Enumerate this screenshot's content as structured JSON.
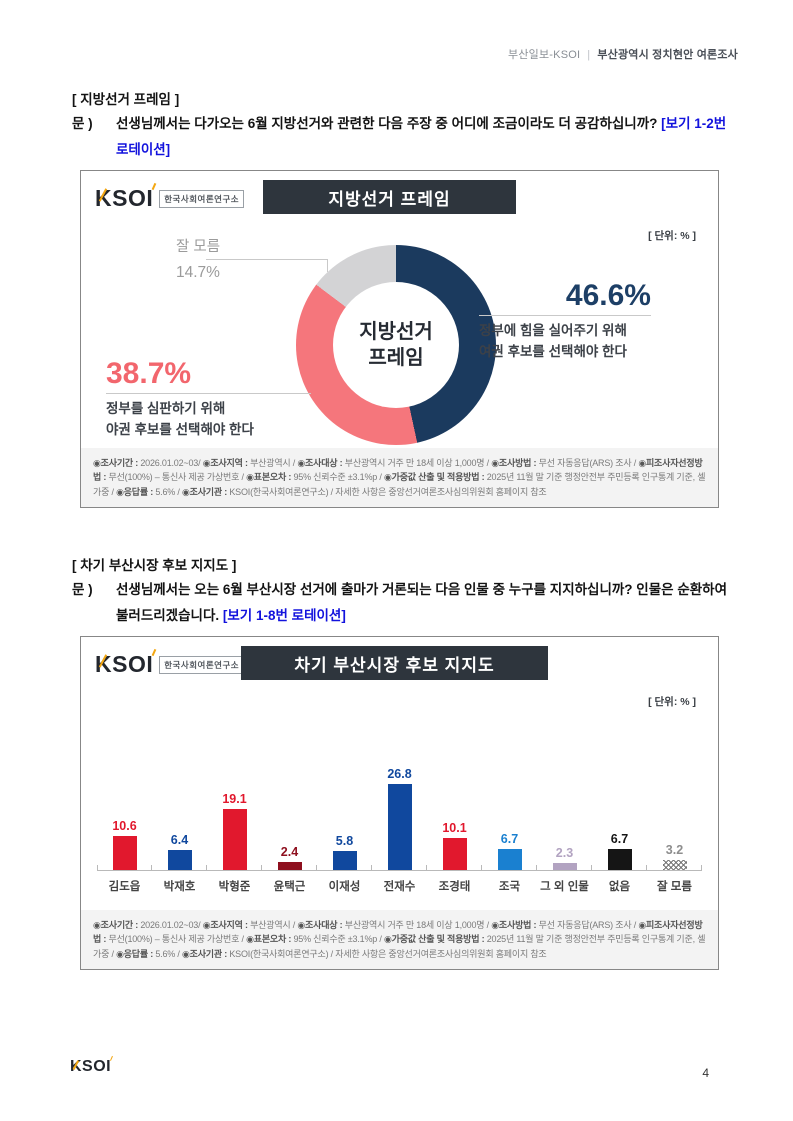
{
  "header": {
    "left": "부산일보-KSOI",
    "divider": "|",
    "right": "부산광역시 정치현안 여론조사"
  },
  "logo": {
    "text": "KSOI",
    "subtitle": "한국사회여론연구소"
  },
  "sections": [
    {
      "heading": "[ 지방선거 프레임 ]",
      "prefix": "문 )",
      "question": "선생님께서는 다가오는 6월 지방선거와 관련한 다음 주장 중 어디에 조금이라도 더 공감하십니까? ",
      "rotation_note": "[보기 1-2번 로테이션]"
    },
    {
      "heading": "[ 차기 부산시장 후보 지지도 ]",
      "prefix": "문 )",
      "question": "선생님께서는 오는 6월 부산시장 선거에 출마가 거론되는 다음 인물 중 누구를 지지하십니까? 인물은 순환하여 불러드리겠습니다. ",
      "rotation_note": "[보기 1-8번 로테이션]"
    }
  ],
  "chart_data": [
    {
      "type": "pie",
      "style": "donut",
      "title": "지방선거 프레임",
      "unit_label": "[ 단위: % ]",
      "center_label_line1": "지방선거",
      "center_label_line2": "프레임",
      "slices": [
        {
          "label": "정부에 힘을 실어주기 위해 여권 후보를 선택해야 한다",
          "value": 46.6,
          "display": "46.6%",
          "color": "#1b3a5e",
          "desc_line1": "정부에 힘을 실어주기 위해",
          "desc_line2": "여권 후보를 선택해야 한다"
        },
        {
          "label": "정부를 심판하기 위해 야권 후보를 선택해야 한다",
          "value": 38.7,
          "display": "38.7%",
          "color": "#f5767c",
          "desc_line1": "정부를 심판하기 위해",
          "desc_line2": "야권 후보를 선택해야 한다"
        },
        {
          "label": "잘 모름",
          "value": 14.7,
          "display": "14.7%",
          "color": "#d3d3d5"
        }
      ]
    },
    {
      "type": "bar",
      "title": "차기 부산시장 후보 지지도",
      "unit_label": "[ 단위: % ]",
      "categories": [
        "김도읍",
        "박재호",
        "박형준",
        "윤택근",
        "이재성",
        "전재수",
        "조경태",
        "조국",
        "그 외 인물",
        "없음",
        "잘 모름"
      ],
      "values": [
        10.6,
        6.4,
        19.1,
        2.4,
        5.8,
        26.8,
        10.1,
        6.7,
        2.3,
        6.7,
        3.2
      ],
      "colors": [
        "#e1182d",
        "#10489e",
        "#e1182d",
        "#8e0f1e",
        "#10489e",
        "#10489e",
        "#e1182d",
        "#1a80d0",
        "#b2a3c1",
        "#151515",
        "hatch"
      ],
      "ylim": [
        0,
        30
      ]
    }
  ],
  "methodology": {
    "segments": [
      {
        "b": "◉조사기간 :",
        "t": " 2026.01.02~03/ "
      },
      {
        "b": "◉조사지역 :",
        "t": " 부산광역시 / "
      },
      {
        "b": "◉조사대상 :",
        "t": " 부산광역시 거주 만 18세 이상 1,000명 / "
      },
      {
        "b": "◉조사방법 :",
        "t": " 무선 자동응답(ARS) 조사 / "
      },
      {
        "b": "◉피조사자선정방법 :",
        "t": " 무선(100%) – 통신사 제공 가상번호 / "
      },
      {
        "b": "◉표본오차 :",
        "t": " 95% 신뢰수준 ±3.1%p / "
      },
      {
        "b": "◉가중값 산출 및 적용방법 :",
        "t": " 2025년 11월 말 기준 행정안전부 주민등록 인구통계 기준, 셀가중 / "
      },
      {
        "b": "◉응답률 :",
        "t": " 5.6% / "
      },
      {
        "b": "◉조사기관 :",
        "t": " KSOI(한국사회여론연구소) / 자세한 사항은 중앙선거여론조사심의위원회 홈페이지 참조"
      }
    ]
  },
  "footer": {
    "page_number": "4"
  }
}
